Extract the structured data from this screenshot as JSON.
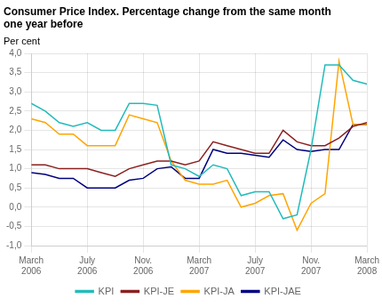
{
  "chart_data": {
    "type": "line",
    "title": "Consumer Price Index. Percentage change from the same month\none year before",
    "ylabel": "Per cent",
    "categories": [
      "March\n2006",
      null,
      null,
      null,
      "July\n2006",
      null,
      null,
      null,
      "Nov.\n2006",
      null,
      null,
      null,
      "March\n2007",
      null,
      null,
      null,
      "July\n2007",
      null,
      null,
      null,
      "Nov.\n2007",
      null,
      null,
      null,
      "March\n2008"
    ],
    "series": [
      {
        "name": "KPI",
        "color": "#22BBBB",
        "values": [
          2.7,
          2.5,
          2.2,
          2.1,
          2.2,
          2.0,
          2.0,
          2.7,
          2.7,
          2.65,
          1.1,
          1.0,
          0.8,
          1.1,
          1.0,
          0.3,
          0.4,
          0.4,
          -0.3,
          -0.2,
          1.5,
          3.7,
          3.7,
          3.3,
          3.2
        ]
      },
      {
        "name": "KPI-JE",
        "color": "#8B2020",
        "values": [
          1.1,
          1.1,
          1.0,
          1.0,
          1.0,
          0.9,
          0.8,
          1.0,
          1.1,
          1.2,
          1.2,
          1.1,
          1.2,
          1.7,
          1.6,
          1.5,
          1.4,
          1.4,
          2.0,
          1.7,
          1.6,
          1.6,
          1.8,
          2.1,
          2.2
        ]
      },
      {
        "name": "KPI-JA",
        "color": "#FFA500",
        "values": [
          2.3,
          2.2,
          1.9,
          1.9,
          1.6,
          1.6,
          1.6,
          2.4,
          2.3,
          2.2,
          1.2,
          0.7,
          0.6,
          0.6,
          0.7,
          0.0,
          0.1,
          0.3,
          0.35,
          -0.6,
          0.1,
          0.35,
          3.8,
          2.15,
          2.15
        ]
      },
      {
        "name": "KPI-JAE",
        "color": "#000080",
        "values": [
          0.9,
          0.85,
          0.75,
          0.75,
          0.5,
          0.5,
          0.5,
          0.7,
          0.75,
          1.0,
          1.05,
          0.75,
          0.75,
          1.5,
          1.4,
          1.4,
          1.35,
          1.3,
          1.75,
          1.5,
          1.45,
          1.5,
          1.5,
          2.15,
          2.15
        ]
      }
    ],
    "ylim": [
      -1.0,
      4.0
    ],
    "yticks": [
      {
        "value": -1.0,
        "label": "-1,0"
      },
      {
        "value": -0.5,
        "label": "-0,5"
      },
      {
        "value": 0.0,
        "label": "0,0"
      },
      {
        "value": 0.5,
        "label": "0,5"
      },
      {
        "value": 1.0,
        "label": "1,0"
      },
      {
        "value": 1.5,
        "label": "1,5"
      },
      {
        "value": 2.0,
        "label": "2,0"
      },
      {
        "value": 2.5,
        "label": "2,5"
      },
      {
        "value": 3.0,
        "label": "3,0"
      },
      {
        "value": 3.5,
        "label": "3,5"
      },
      {
        "value": 4.0,
        "label": "4,0"
      }
    ],
    "grid": true,
    "legend": "bottom"
  }
}
